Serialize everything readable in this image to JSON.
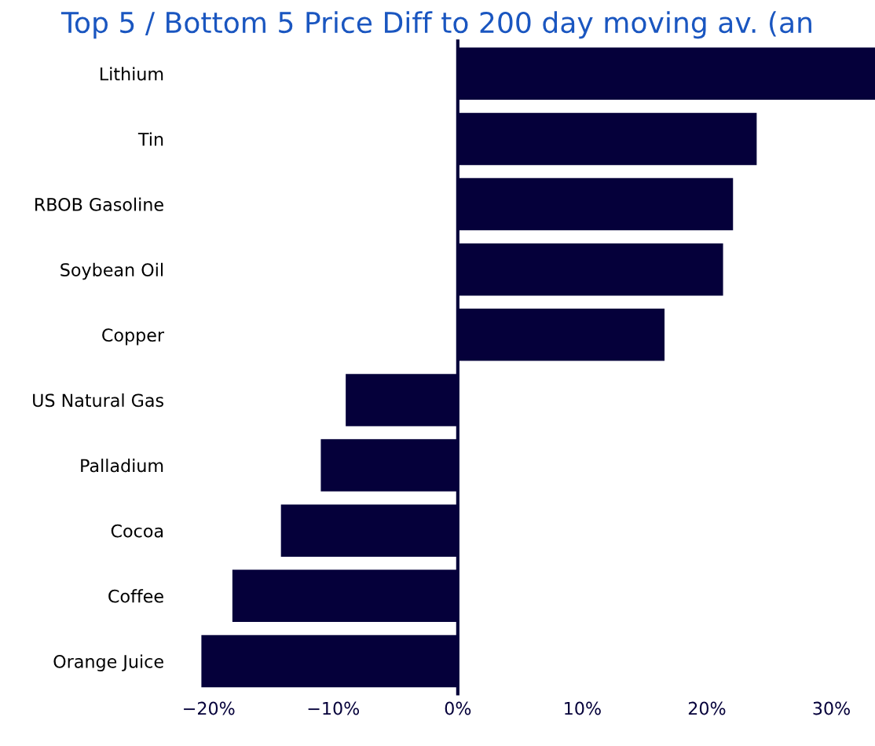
{
  "chart_data": {
    "type": "bar",
    "orientation": "horizontal",
    "title": "Top 5 / Bottom 5 Price Diff to 200 day moving av. (an",
    "categories": [
      "Lithium",
      "Tin",
      "RBOB Gasoline",
      "Soybean Oil",
      "Copper",
      "US Natural Gas",
      "Palladium",
      "Cocoa",
      "Coffee",
      "Orange Juice"
    ],
    "values": [
      33.5,
      24.0,
      22.1,
      21.3,
      16.6,
      -9.0,
      -11.0,
      -14.2,
      -18.1,
      -20.6
    ],
    "color": "#05003a",
    "xlim": [
      -20.6,
      33.5
    ],
    "xticks": [
      {
        "value": -20,
        "label": "−20%"
      },
      {
        "value": -10,
        "label": "−10%"
      },
      {
        "value": 0,
        "label": "0%"
      },
      {
        "value": 10,
        "label": "10%"
      },
      {
        "value": 20,
        "label": "20%"
      },
      {
        "value": 30,
        "label": "30%"
      }
    ],
    "grid": false,
    "legend": false
  }
}
